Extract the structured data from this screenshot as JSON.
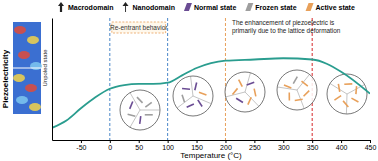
{
  "chart_data": {
    "type": "line",
    "x_label": "Temperature (°C)",
    "y_label": "Piezoelectricity",
    "x": [
      -100,
      -75,
      -50,
      -25,
      0,
      25,
      50,
      75,
      100,
      125,
      150,
      175,
      200,
      250,
      300,
      350,
      400,
      450
    ],
    "values": [
      1.0,
      1.6,
      2.6,
      3.5,
      4.2,
      4.5,
      4.6,
      4.6,
      4.7,
      5.3,
      5.9,
      6.3,
      6.5,
      6.6,
      6.7,
      6.6,
      5.6,
      3.8
    ],
    "color": "#2a9d8f",
    "xlim": [
      -100,
      450
    ],
    "xticks": [
      -50,
      0,
      50,
      100,
      150,
      200,
      250,
      300,
      350,
      400,
      450
    ],
    "ylim": [
      0,
      10
    ],
    "tick_labels": "x",
    "key": [
      {
        "label": "Macrodomain",
        "color": "#222222"
      },
      {
        "label": "Nanodomain",
        "color": "#222222"
      },
      {
        "label": "Normal state",
        "color": "#6a4c93"
      },
      {
        "label": "Frozen state",
        "color": "#9e9e9e"
      },
      {
        "label": "Active state",
        "color": "#e8a05a"
      }
    ],
    "reference_lines": [
      {
        "x": 0,
        "color": "#4a86c8"
      },
      {
        "x": 100,
        "color": "#4a86c8"
      },
      {
        "x": 200,
        "color": "#e8a05a"
      },
      {
        "x": 350,
        "color": "#d62728"
      }
    ],
    "annotations": [
      {
        "text": "Re-entrant behavior"
      },
      {
        "lines": [
          "The enhancement of piezoelectric is",
          "primarily due to the lattice deformation"
        ]
      },
      {
        "text": "Unpoled state"
      }
    ]
  }
}
